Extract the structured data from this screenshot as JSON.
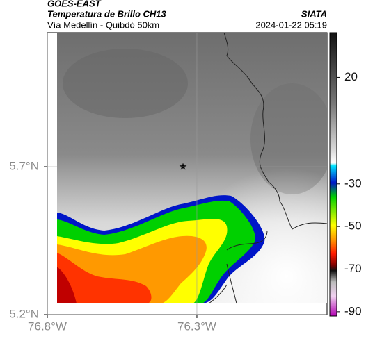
{
  "header": {
    "satellite": "GOES-EAST",
    "product": "Temperatura de Brillo CH13",
    "region": "Vía Medellín - Quibdó 50km",
    "source": "SIATA",
    "timestamp": "2024-01-22 05:19"
  },
  "map": {
    "xlim": [
      -76.8,
      -75.865
    ],
    "ylim": [
      5.2,
      6.153
    ],
    "xticks": [
      {
        "value": -76.8,
        "label": "76.8°W"
      },
      {
        "value": -76.3,
        "label": "76.3°W"
      }
    ],
    "yticks": [
      {
        "value": 5.2,
        "label": "5.2°N"
      },
      {
        "value": 5.7,
        "label": "5.7°N"
      }
    ],
    "grid": true
  },
  "colorbar": {
    "lim": [
      -92,
      41
    ],
    "ticks": [
      20,
      -30,
      -50,
      -70,
      -90
    ]
  }
}
